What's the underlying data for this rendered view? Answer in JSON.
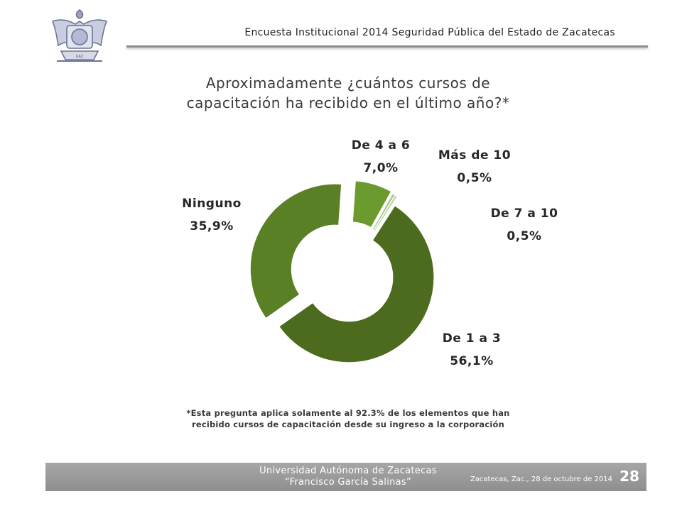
{
  "header": {
    "title": "Encuesta Institucional 2014 Seguridad Pública del Estado de Zacatecas",
    "logo_icon": "university-seal-icon"
  },
  "question": {
    "line1": "Aproximadamente ¿cuántos cursos de",
    "line2": "capacitación ha recibido en el último año?*"
  },
  "chart_data": {
    "type": "pie",
    "variant": "exploded-doughnut",
    "categories": [
      "De 4 a 6",
      "Más de 10",
      "De 7 a 10",
      "De 1 a 3",
      "Ninguno"
    ],
    "values": [
      7.0,
      0.5,
      0.5,
      56.1,
      35.9
    ],
    "value_labels": [
      "7,0%",
      "0,5%",
      "0,5%",
      "56,1%",
      "35,9%"
    ],
    "colors": [
      "#6b9a2e",
      "#a9c686",
      "#c4d6ae",
      "#4d6b1f",
      "#5a8025"
    ]
  },
  "footnote": {
    "line1": "*Esta pregunta aplica solamente al 92.3% de los elementos que han",
    "line2": "recibido cursos de capacitación desde su ingreso a la corporación"
  },
  "footer": {
    "university": "Universidad Autónoma de Zacatecas",
    "university_sub": "“Francisco García Salinas”",
    "date": "Zacatecas, Zac., 28 de octubre de 2014",
    "page": "28"
  }
}
